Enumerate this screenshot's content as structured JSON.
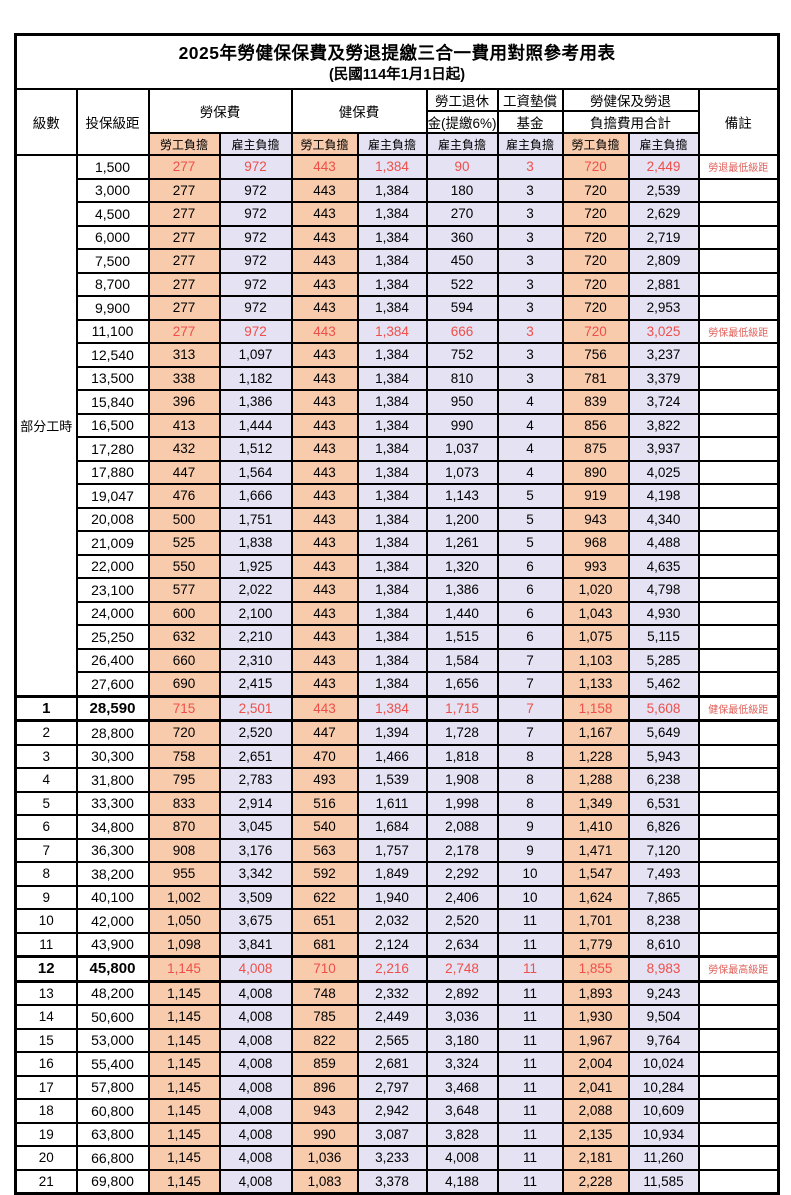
{
  "title": "2025年勞健保保費及勞退提繳三合一費用對照參考用表",
  "subtitle": "(民國114年1月1日起)",
  "colors": {
    "employee_bg": "#F8CBAD",
    "employer_bg": "#E4E2F3",
    "highlight_red": "#EF4F49",
    "remark_red": "#E0605A",
    "border": "#000000"
  },
  "header": {
    "level": "級數",
    "bracket": "投保級距",
    "labor_group": "勞保費",
    "health_group": "健保費",
    "pension_line1": "勞工退休",
    "pension_line2": "金(提繳6%)",
    "wage_fund_line1": "工資墊償",
    "wage_fund_line2": "基金",
    "total_line1": "勞健保及勞退",
    "total_line2": "負擔費用合計",
    "remark": "備註",
    "employee": "勞工負擔",
    "employer": "雇主負擔"
  },
  "part_time_label": "部分工時",
  "part_time_rowspan": 23,
  "rows": [
    {
      "level": "",
      "bracket": "1,500",
      "values": [
        "277",
        "972",
        "443",
        "1,384",
        "90",
        "3",
        "720",
        "2,449"
      ],
      "remark": "勞退最低級距",
      "red": true,
      "bold": false,
      "sep": false
    },
    {
      "level": "",
      "bracket": "3,000",
      "values": [
        "277",
        "972",
        "443",
        "1,384",
        "180",
        "3",
        "720",
        "2,539"
      ],
      "remark": "",
      "red": false,
      "bold": false,
      "sep": false
    },
    {
      "level": "",
      "bracket": "4,500",
      "values": [
        "277",
        "972",
        "443",
        "1,384",
        "270",
        "3",
        "720",
        "2,629"
      ],
      "remark": "",
      "red": false,
      "bold": false,
      "sep": false
    },
    {
      "level": "",
      "bracket": "6,000",
      "values": [
        "277",
        "972",
        "443",
        "1,384",
        "360",
        "3",
        "720",
        "2,719"
      ],
      "remark": "",
      "red": false,
      "bold": false,
      "sep": false
    },
    {
      "level": "",
      "bracket": "7,500",
      "values": [
        "277",
        "972",
        "443",
        "1,384",
        "450",
        "3",
        "720",
        "2,809"
      ],
      "remark": "",
      "red": false,
      "bold": false,
      "sep": false
    },
    {
      "level": "",
      "bracket": "8,700",
      "values": [
        "277",
        "972",
        "443",
        "1,384",
        "522",
        "3",
        "720",
        "2,881"
      ],
      "remark": "",
      "red": false,
      "bold": false,
      "sep": false
    },
    {
      "level": "",
      "bracket": "9,900",
      "values": [
        "277",
        "972",
        "443",
        "1,384",
        "594",
        "3",
        "720",
        "2,953"
      ],
      "remark": "",
      "red": false,
      "bold": false,
      "sep": false
    },
    {
      "level": "",
      "bracket": "11,100",
      "values": [
        "277",
        "972",
        "443",
        "1,384",
        "666",
        "3",
        "720",
        "3,025"
      ],
      "remark": "勞保最低級距",
      "red": true,
      "bold": false,
      "sep": false
    },
    {
      "level": "",
      "bracket": "12,540",
      "values": [
        "313",
        "1,097",
        "443",
        "1,384",
        "752",
        "3",
        "756",
        "3,237"
      ],
      "remark": "",
      "red": false,
      "bold": false,
      "sep": false
    },
    {
      "level": "",
      "bracket": "13,500",
      "values": [
        "338",
        "1,182",
        "443",
        "1,384",
        "810",
        "3",
        "781",
        "3,379"
      ],
      "remark": "",
      "red": false,
      "bold": false,
      "sep": false
    },
    {
      "level": "",
      "bracket": "15,840",
      "values": [
        "396",
        "1,386",
        "443",
        "1,384",
        "950",
        "4",
        "839",
        "3,724"
      ],
      "remark": "",
      "red": false,
      "bold": false,
      "sep": false
    },
    {
      "level": "",
      "bracket": "16,500",
      "values": [
        "413",
        "1,444",
        "443",
        "1,384",
        "990",
        "4",
        "856",
        "3,822"
      ],
      "remark": "",
      "red": false,
      "bold": false,
      "sep": false
    },
    {
      "level": "",
      "bracket": "17,280",
      "values": [
        "432",
        "1,512",
        "443",
        "1,384",
        "1,037",
        "4",
        "875",
        "3,937"
      ],
      "remark": "",
      "red": false,
      "bold": false,
      "sep": false
    },
    {
      "level": "",
      "bracket": "17,880",
      "values": [
        "447",
        "1,564",
        "443",
        "1,384",
        "1,073",
        "4",
        "890",
        "4,025"
      ],
      "remark": "",
      "red": false,
      "bold": false,
      "sep": false
    },
    {
      "level": "",
      "bracket": "19,047",
      "values": [
        "476",
        "1,666",
        "443",
        "1,384",
        "1,143",
        "5",
        "919",
        "4,198"
      ],
      "remark": "",
      "red": false,
      "bold": false,
      "sep": false
    },
    {
      "level": "",
      "bracket": "20,008",
      "values": [
        "500",
        "1,751",
        "443",
        "1,384",
        "1,200",
        "5",
        "943",
        "4,340"
      ],
      "remark": "",
      "red": false,
      "bold": false,
      "sep": false
    },
    {
      "level": "",
      "bracket": "21,009",
      "values": [
        "525",
        "1,838",
        "443",
        "1,384",
        "1,261",
        "5",
        "968",
        "4,488"
      ],
      "remark": "",
      "red": false,
      "bold": false,
      "sep": false
    },
    {
      "level": "",
      "bracket": "22,000",
      "values": [
        "550",
        "1,925",
        "443",
        "1,384",
        "1,320",
        "6",
        "993",
        "4,635"
      ],
      "remark": "",
      "red": false,
      "bold": false,
      "sep": false
    },
    {
      "level": "",
      "bracket": "23,100",
      "values": [
        "577",
        "2,022",
        "443",
        "1,384",
        "1,386",
        "6",
        "1,020",
        "4,798"
      ],
      "remark": "",
      "red": false,
      "bold": false,
      "sep": false
    },
    {
      "level": "",
      "bracket": "24,000",
      "values": [
        "600",
        "2,100",
        "443",
        "1,384",
        "1,440",
        "6",
        "1,043",
        "4,930"
      ],
      "remark": "",
      "red": false,
      "bold": false,
      "sep": false
    },
    {
      "level": "",
      "bracket": "25,250",
      "values": [
        "632",
        "2,210",
        "443",
        "1,384",
        "1,515",
        "6",
        "1,075",
        "5,115"
      ],
      "remark": "",
      "red": false,
      "bold": false,
      "sep": false
    },
    {
      "level": "",
      "bracket": "26,400",
      "values": [
        "660",
        "2,310",
        "443",
        "1,384",
        "1,584",
        "7",
        "1,103",
        "5,285"
      ],
      "remark": "",
      "red": false,
      "bold": false,
      "sep": false
    },
    {
      "level": "",
      "bracket": "27,600",
      "values": [
        "690",
        "2,415",
        "443",
        "1,384",
        "1,656",
        "7",
        "1,133",
        "5,462"
      ],
      "remark": "",
      "red": false,
      "bold": false,
      "sep": false
    },
    {
      "level": "1",
      "bracket": "28,590",
      "values": [
        "715",
        "2,501",
        "443",
        "1,384",
        "1,715",
        "7",
        "1,158",
        "5,608"
      ],
      "remark": "健保最低級距",
      "red": true,
      "bold": true,
      "sep": true
    },
    {
      "level": "2",
      "bracket": "28,800",
      "values": [
        "720",
        "2,520",
        "447",
        "1,394",
        "1,728",
        "7",
        "1,167",
        "5,649"
      ],
      "remark": "",
      "red": false,
      "bold": false,
      "sep": false
    },
    {
      "level": "3",
      "bracket": "30,300",
      "values": [
        "758",
        "2,651",
        "470",
        "1,466",
        "1,818",
        "8",
        "1,228",
        "5,943"
      ],
      "remark": "",
      "red": false,
      "bold": false,
      "sep": false
    },
    {
      "level": "4",
      "bracket": "31,800",
      "values": [
        "795",
        "2,783",
        "493",
        "1,539",
        "1,908",
        "8",
        "1,288",
        "6,238"
      ],
      "remark": "",
      "red": false,
      "bold": false,
      "sep": false
    },
    {
      "level": "5",
      "bracket": "33,300",
      "values": [
        "833",
        "2,914",
        "516",
        "1,611",
        "1,998",
        "8",
        "1,349",
        "6,531"
      ],
      "remark": "",
      "red": false,
      "bold": false,
      "sep": false
    },
    {
      "level": "6",
      "bracket": "34,800",
      "values": [
        "870",
        "3,045",
        "540",
        "1,684",
        "2,088",
        "9",
        "1,410",
        "6,826"
      ],
      "remark": "",
      "red": false,
      "bold": false,
      "sep": false
    },
    {
      "level": "7",
      "bracket": "36,300",
      "values": [
        "908",
        "3,176",
        "563",
        "1,757",
        "2,178",
        "9",
        "1,471",
        "7,120"
      ],
      "remark": "",
      "red": false,
      "bold": false,
      "sep": false
    },
    {
      "level": "8",
      "bracket": "38,200",
      "values": [
        "955",
        "3,342",
        "592",
        "1,849",
        "2,292",
        "10",
        "1,547",
        "7,493"
      ],
      "remark": "",
      "red": false,
      "bold": false,
      "sep": false
    },
    {
      "level": "9",
      "bracket": "40,100",
      "values": [
        "1,002",
        "3,509",
        "622",
        "1,940",
        "2,406",
        "10",
        "1,624",
        "7,865"
      ],
      "remark": "",
      "red": false,
      "bold": false,
      "sep": false
    },
    {
      "level": "10",
      "bracket": "42,000",
      "values": [
        "1,050",
        "3,675",
        "651",
        "2,032",
        "2,520",
        "11",
        "1,701",
        "8,238"
      ],
      "remark": "",
      "red": false,
      "bold": false,
      "sep": false
    },
    {
      "level": "11",
      "bracket": "43,900",
      "values": [
        "1,098",
        "3,841",
        "681",
        "2,124",
        "2,634",
        "11",
        "1,779",
        "8,610"
      ],
      "remark": "",
      "red": false,
      "bold": false,
      "sep": false
    },
    {
      "level": "12",
      "bracket": "45,800",
      "values": [
        "1,145",
        "4,008",
        "710",
        "2,216",
        "2,748",
        "11",
        "1,855",
        "8,983"
      ],
      "remark": "勞保最高級距",
      "red": true,
      "bold": true,
      "sep": true
    },
    {
      "level": "13",
      "bracket": "48,200",
      "values": [
        "1,145",
        "4,008",
        "748",
        "2,332",
        "2,892",
        "11",
        "1,893",
        "9,243"
      ],
      "remark": "",
      "red": false,
      "bold": false,
      "sep": false
    },
    {
      "level": "14",
      "bracket": "50,600",
      "values": [
        "1,145",
        "4,008",
        "785",
        "2,449",
        "3,036",
        "11",
        "1,930",
        "9,504"
      ],
      "remark": "",
      "red": false,
      "bold": false,
      "sep": false
    },
    {
      "level": "15",
      "bracket": "53,000",
      "values": [
        "1,145",
        "4,008",
        "822",
        "2,565",
        "3,180",
        "11",
        "1,967",
        "9,764"
      ],
      "remark": "",
      "red": false,
      "bold": false,
      "sep": false
    },
    {
      "level": "16",
      "bracket": "55,400",
      "values": [
        "1,145",
        "4,008",
        "859",
        "2,681",
        "3,324",
        "11",
        "2,004",
        "10,024"
      ],
      "remark": "",
      "red": false,
      "bold": false,
      "sep": false
    },
    {
      "level": "17",
      "bracket": "57,800",
      "values": [
        "1,145",
        "4,008",
        "896",
        "2,797",
        "3,468",
        "11",
        "2,041",
        "10,284"
      ],
      "remark": "",
      "red": false,
      "bold": false,
      "sep": false
    },
    {
      "level": "18",
      "bracket": "60,800",
      "values": [
        "1,145",
        "4,008",
        "943",
        "2,942",
        "3,648",
        "11",
        "2,088",
        "10,609"
      ],
      "remark": "",
      "red": false,
      "bold": false,
      "sep": false
    },
    {
      "level": "19",
      "bracket": "63,800",
      "values": [
        "1,145",
        "4,008",
        "990",
        "3,087",
        "3,828",
        "11",
        "2,135",
        "10,934"
      ],
      "remark": "",
      "red": false,
      "bold": false,
      "sep": false
    },
    {
      "level": "20",
      "bracket": "66,800",
      "values": [
        "1,145",
        "4,008",
        "1,036",
        "3,233",
        "4,008",
        "11",
        "2,181",
        "11,260"
      ],
      "remark": "",
      "red": false,
      "bold": false,
      "sep": false
    },
    {
      "level": "21",
      "bracket": "69,800",
      "values": [
        "1,145",
        "4,008",
        "1,083",
        "3,378",
        "4,188",
        "11",
        "2,228",
        "11,585"
      ],
      "remark": "",
      "red": false,
      "bold": false,
      "sep": false
    }
  ]
}
